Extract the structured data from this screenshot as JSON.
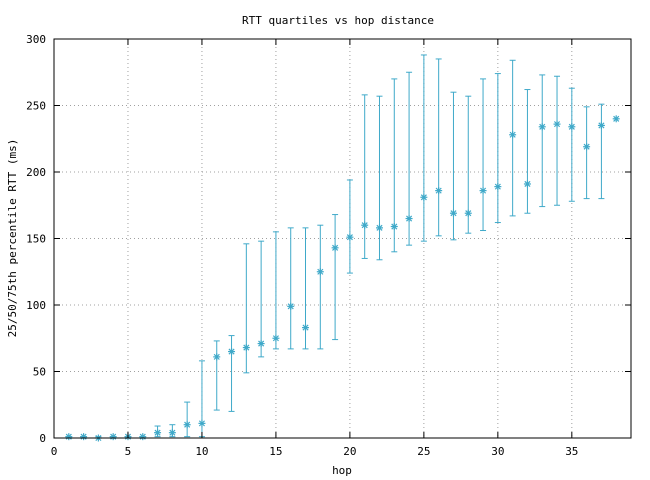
{
  "chart_data": {
    "type": "scatter",
    "title": "RTT quartiles vs hop distance",
    "xlabel": "hop",
    "ylabel": "25/50/75th percentile RTT (ms)",
    "xlim": [
      0,
      39
    ],
    "ylim": [
      0,
      300
    ],
    "xticks": [
      0,
      5,
      10,
      15,
      20,
      25,
      30,
      35
    ],
    "yticks": [
      0,
      50,
      100,
      150,
      200,
      250,
      300
    ],
    "grid": true,
    "error_bars": true,
    "series_color": "#3fa9c9",
    "series": [
      {
        "points": [
          {
            "x": 1,
            "low": 0,
            "median": 1,
            "high": 1
          },
          {
            "x": 2,
            "low": 0,
            "median": 1,
            "high": 1
          },
          {
            "x": 3,
            "low": 0,
            "median": 0,
            "high": 1
          },
          {
            "x": 4,
            "low": 0,
            "median": 1,
            "high": 1
          },
          {
            "x": 5,
            "low": 0,
            "median": 1,
            "high": 1
          },
          {
            "x": 6,
            "low": 0,
            "median": 1,
            "high": 1
          },
          {
            "x": 7,
            "low": 1,
            "median": 4,
            "high": 9
          },
          {
            "x": 8,
            "low": 1,
            "median": 4,
            "high": 10
          },
          {
            "x": 9,
            "low": 1,
            "median": 10,
            "high": 27
          },
          {
            "x": 10,
            "low": 1,
            "median": 11,
            "high": 58
          },
          {
            "x": 11,
            "low": 21,
            "median": 61,
            "high": 73
          },
          {
            "x": 12,
            "low": 20,
            "median": 65,
            "high": 77
          },
          {
            "x": 13,
            "low": 49,
            "median": 68,
            "high": 146
          },
          {
            "x": 14,
            "low": 61,
            "median": 71,
            "high": 148
          },
          {
            "x": 15,
            "low": 67,
            "median": 75,
            "high": 155
          },
          {
            "x": 16,
            "low": 67,
            "median": 99,
            "high": 158
          },
          {
            "x": 17,
            "low": 67,
            "median": 83,
            "high": 158
          },
          {
            "x": 18,
            "low": 67,
            "median": 125,
            "high": 160
          },
          {
            "x": 19,
            "low": 74,
            "median": 143,
            "high": 168
          },
          {
            "x": 20,
            "low": 124,
            "median": 151,
            "high": 194
          },
          {
            "x": 21,
            "low": 135,
            "median": 160,
            "high": 258
          },
          {
            "x": 22,
            "low": 134,
            "median": 158,
            "high": 257
          },
          {
            "x": 23,
            "low": 140,
            "median": 159,
            "high": 270
          },
          {
            "x": 24,
            "low": 145,
            "median": 165,
            "high": 275
          },
          {
            "x": 25,
            "low": 148,
            "median": 181,
            "high": 288
          },
          {
            "x": 26,
            "low": 152,
            "median": 186,
            "high": 285
          },
          {
            "x": 27,
            "low": 149,
            "median": 169,
            "high": 260
          },
          {
            "x": 28,
            "low": 154,
            "median": 169,
            "high": 257
          },
          {
            "x": 29,
            "low": 156,
            "median": 186,
            "high": 270
          },
          {
            "x": 30,
            "low": 162,
            "median": 189,
            "high": 274
          },
          {
            "x": 31,
            "low": 167,
            "median": 228,
            "high": 284
          },
          {
            "x": 32,
            "low": 169,
            "median": 191,
            "high": 262
          },
          {
            "x": 33,
            "low": 174,
            "median": 234,
            "high": 273
          },
          {
            "x": 34,
            "low": 175,
            "median": 236,
            "high": 272
          },
          {
            "x": 35,
            "low": 178,
            "median": 234,
            "high": 263
          },
          {
            "x": 36,
            "low": 180,
            "median": 219,
            "high": 249
          },
          {
            "x": 37,
            "low": 180,
            "median": 235,
            "high": 251
          },
          {
            "x": 38,
            "low": 240,
            "median": 240,
            "high": 240
          }
        ]
      }
    ]
  }
}
